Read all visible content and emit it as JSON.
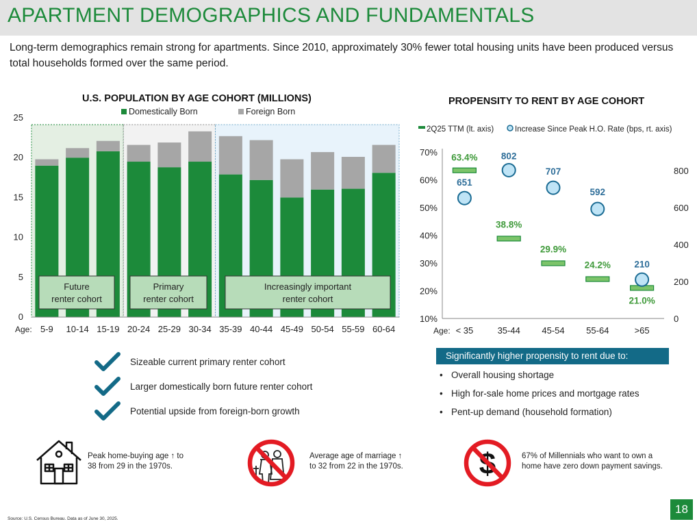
{
  "title": "APARTMENT DEMOGRAPHICS AND FUNDAMENTALS",
  "intro": "Long-term demographics remain strong for apartments. Since 2010, approximately 30% fewer total housing units have been produced versus total households formed over the same period.",
  "colors": {
    "green": "#1c8a3a",
    "gray": "#a6a6a6",
    "accent_blue": "#136a87",
    "dot_fill": "#bfe4f6",
    "dot_stroke": "#1a6b93",
    "label_blue": "#2e6e99",
    "light_green": "#92d050"
  },
  "chart_data": [
    {
      "type": "bar",
      "stacked": true,
      "title": "U.S. POPULATION BY AGE COHORT (MILLIONS)",
      "xlabel": "Age:",
      "categories": [
        "5-9",
        "10-14",
        "15-19",
        "20-24",
        "25-29",
        "30-34",
        "35-39",
        "40-44",
        "45-49",
        "50-54",
        "55-59",
        "60-64"
      ],
      "series": [
        {
          "name": "Domestically Born",
          "color": "#1c8a3a",
          "values": [
            19.0,
            20.0,
            20.8,
            19.5,
            18.8,
            19.5,
            17.9,
            17.2,
            15.0,
            16.0,
            16.1,
            18.1
          ]
        },
        {
          "name": "Foreign Born",
          "color": "#a6a6a6",
          "values": [
            0.8,
            1.2,
            1.3,
            2.1,
            3.1,
            3.8,
            4.8,
            5.0,
            4.8,
            4.7,
            4.0,
            3.5
          ]
        }
      ],
      "ylim": [
        0,
        25
      ],
      "yticks": [
        0,
        5,
        10,
        15,
        20,
        25
      ],
      "legend": "top",
      "grid": false,
      "cohorts": [
        {
          "label": "Future renter cohort",
          "categories": [
            "5-9",
            "10-14",
            "15-19"
          ],
          "shade": "light-green"
        },
        {
          "label": "Primary renter cohort",
          "categories": [
            "20-24",
            "25-29",
            "30-34"
          ],
          "shade": "light-gray"
        },
        {
          "label": "Increasingly important renter cohort",
          "categories": [
            "35-39",
            "40-44",
            "45-49",
            "50-54",
            "55-59",
            "60-64"
          ],
          "shade": "light-blue"
        }
      ]
    },
    {
      "type": "scatter",
      "title": "PROPENSITY TO RENT BY AGE COHORT",
      "xlabel": "Age:",
      "categories": [
        "< 35",
        "35-44",
        "45-54",
        "55-64",
        ">65"
      ],
      "series": [
        {
          "name": "2Q25 TTM (lt. axis)",
          "axis": "left",
          "marker": "dash",
          "values": [
            63.4,
            38.8,
            29.9,
            24.2,
            21.0
          ],
          "labels": [
            "63.4%",
            "38.8%",
            "29.9%",
            "24.2%",
            "21.0%"
          ]
        },
        {
          "name": "Increase Since Peak H.O. Rate (bps, rt. axis)",
          "axis": "right",
          "marker": "circle",
          "values": [
            651,
            802,
            707,
            592,
            210
          ],
          "labels": [
            "651",
            "802",
            "707",
            "592",
            "210"
          ]
        }
      ],
      "ylim_left": [
        10,
        70
      ],
      "yticks_left": [
        "10%",
        "20%",
        "30%",
        "40%",
        "50%",
        "60%",
        "70%"
      ],
      "ylim_right": [
        0,
        900
      ],
      "yticks_right": [
        "0",
        "200",
        "400",
        "600",
        "800"
      ],
      "legend": "top",
      "grid": false
    }
  ],
  "checklist": [
    "Sizeable current primary renter cohort",
    "Larger domestically born future renter cohort",
    "Potential upside from foreign-born growth"
  ],
  "reasons": {
    "header": "Significantly higher propensity to rent due to:",
    "items": [
      "Overall housing shortage",
      "High for-sale home prices and mortgage rates",
      "Pent-up demand (household formation)"
    ]
  },
  "facts": [
    {
      "icon": "house-icon",
      "line1": "Peak home-buying age ↑ to",
      "line2": "38 from 29 in the 1970s."
    },
    {
      "icon": "no-marriage-icon",
      "line1": "Average age of marriage ↑",
      "line2": "to 32 from 22 in the 1970s."
    },
    {
      "icon": "no-money-icon",
      "line1": "67% of Millennials who want to own a",
      "line2": "home have zero down payment savings."
    }
  ],
  "footer": {
    "source": "Source: U.S. Census Bureau. Data as of June 30, 2025.",
    "page": "18"
  }
}
